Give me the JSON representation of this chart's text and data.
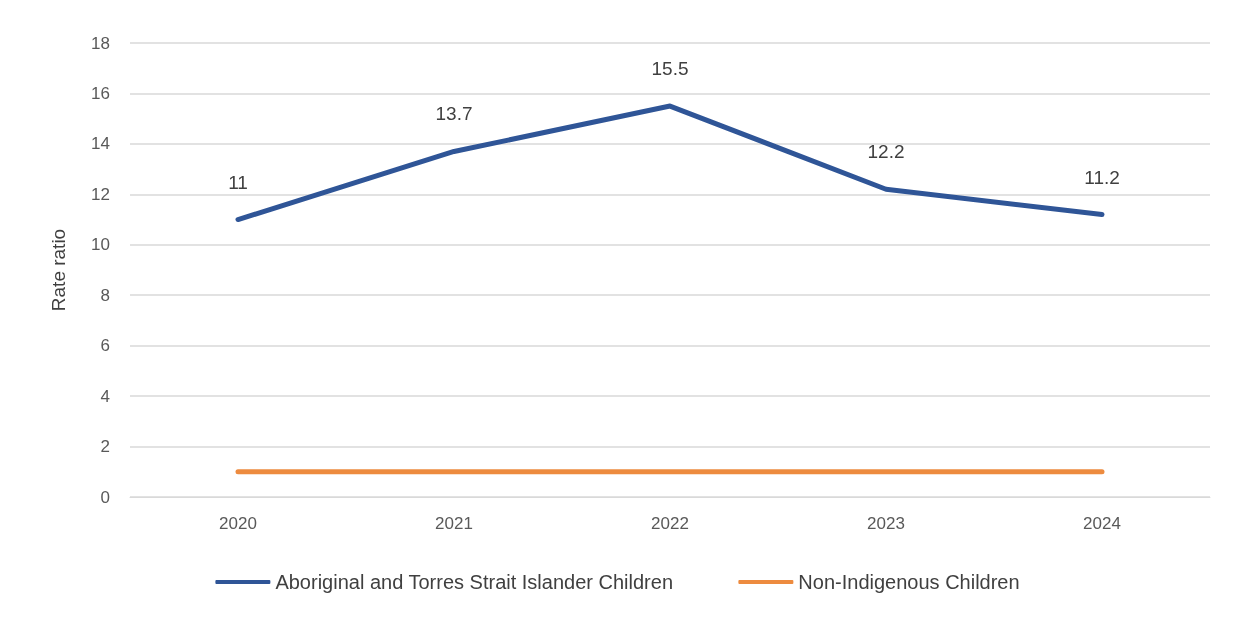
{
  "chart_data": {
    "type": "line",
    "ylabel": "Rate ratio",
    "categories": [
      "2020",
      "2021",
      "2022",
      "2023",
      "2024"
    ],
    "series": [
      {
        "name": "Aboriginal and Torres Strait Islander Children",
        "color": "#2f5597",
        "values": [
          11,
          13.7,
          15.5,
          12.2,
          11.2
        ],
        "value_labels": [
          "11",
          "13.7",
          "15.5",
          "12.2",
          "11.2"
        ]
      },
      {
        "name": "Non-Indigenous Children",
        "color": "#ed8b3f",
        "values": [
          1,
          1,
          1,
          1,
          1
        ]
      }
    ],
    "ylim": [
      0,
      18
    ],
    "yticks": [
      0,
      2,
      4,
      6,
      8,
      10,
      12,
      14,
      16,
      18
    ],
    "grid": "y",
    "legend": "bottom",
    "marker": "none",
    "line_style": "solid"
  }
}
